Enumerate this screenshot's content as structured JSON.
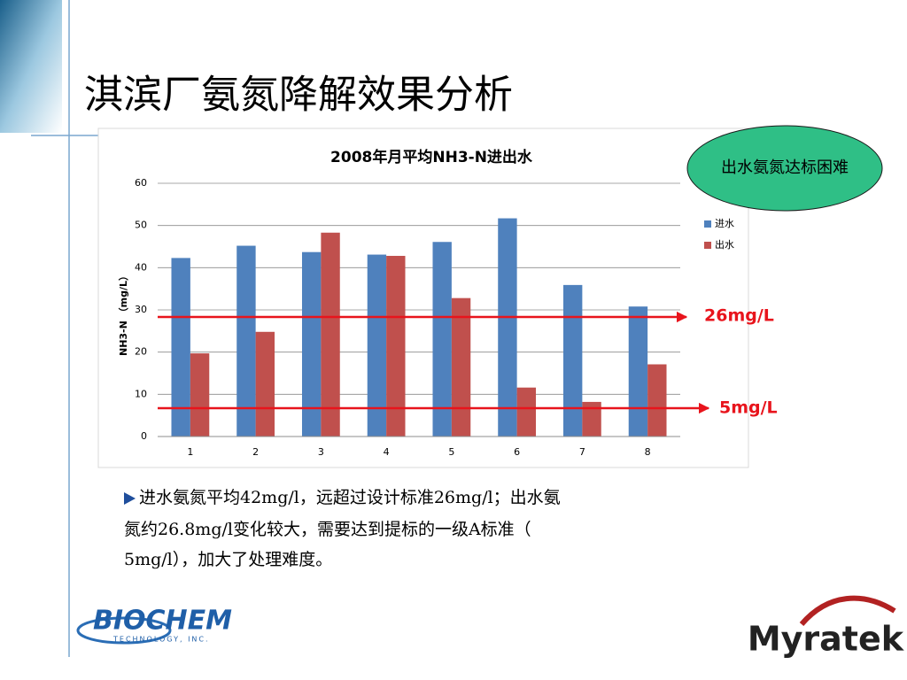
{
  "slide": {
    "title": "淇滨厂氨氮降解效果分析",
    "callout": "出水氨氮达标困难",
    "annotations": [
      "26mg/L",
      "5mg/L"
    ],
    "bullet": [
      "进水氨氮平均42mg/l，远超过设计标准26mg/l；出水氨",
      "氮约26.8mg/l变化较大，需要达到提标的一级A标准（",
      "5mg/l），加大了处理难度。"
    ],
    "logo_left": {
      "name": "BIOCHEM",
      "sub": "TECHNOLOGY, INC."
    },
    "logo_right": "Myratek"
  },
  "chart_data": {
    "type": "bar",
    "title": "2008年月平均NH3-N进出水",
    "y_label": "NH3-N （mg/L）",
    "categories": [
      "1",
      "2",
      "3",
      "4",
      "5",
      "6",
      "7",
      "8"
    ],
    "series": [
      {
        "name": "进水",
        "color": "#4f81bd",
        "values": [
          42.3,
          45.2,
          43.7,
          43.1,
          46.1,
          51.7,
          35.9,
          30.8
        ]
      },
      {
        "name": "出水",
        "color": "#c0504d",
        "values": [
          19.7,
          24.8,
          48.3,
          42.8,
          32.8,
          11.6,
          8.2,
          17.1
        ]
      }
    ],
    "ylim": [
      0,
      60
    ],
    "yticks": [
      0,
      10,
      20,
      30,
      40,
      50,
      60
    ],
    "grid": true,
    "legend": "right"
  }
}
